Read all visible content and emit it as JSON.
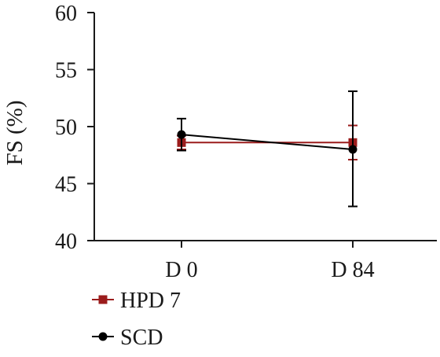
{
  "chart_data": {
    "type": "line",
    "title": "",
    "xlabel": "",
    "ylabel": "FS (%)",
    "ylim": [
      40,
      60
    ],
    "yticks": [
      40,
      45,
      50,
      55,
      60
    ],
    "categories": [
      "D 0",
      "D 84"
    ],
    "grid": false,
    "legend_position": "bottom-left",
    "series": [
      {
        "name": "HPD 7",
        "values": [
          48.6,
          48.6
        ],
        "error": [
          [
            48.0,
            49.2
          ],
          [
            47.1,
            50.1
          ]
        ],
        "color": "#9b1c1c",
        "marker": "square"
      },
      {
        "name": "SCD",
        "values": [
          49.3,
          48.0
        ],
        "error": [
          [
            47.9,
            50.7
          ],
          [
            43.0,
            53.1
          ]
        ],
        "color": "#000000",
        "marker": "circle"
      }
    ]
  }
}
